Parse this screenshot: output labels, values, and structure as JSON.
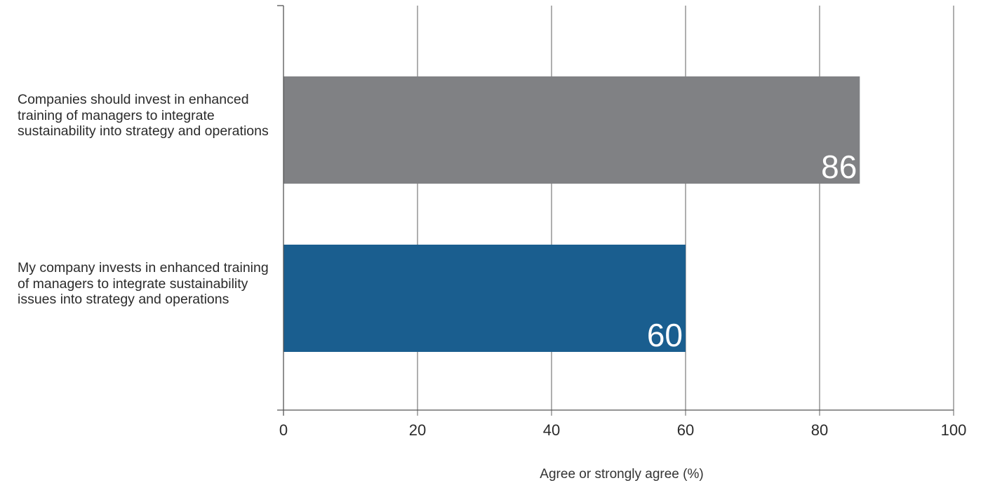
{
  "chart_data": {
    "type": "bar",
    "orientation": "horizontal",
    "title": "",
    "xlabel": "Agree or strongly agree (%)",
    "ylabel": "",
    "xlim": [
      0,
      100
    ],
    "xticks": [
      0,
      20,
      40,
      60,
      80,
      100
    ],
    "grid": "vertical",
    "categories": [
      "Companies should invest in enhanced training of managers to integrate sustainability into strategy and operations",
      "My company invests in enhanced training of managers to integrate sustainability issues into strategy and operations"
    ],
    "values": [
      86,
      60
    ],
    "data_labels": [
      "86",
      "60"
    ],
    "colors": [
      "#808184",
      "#1a5e8f"
    ]
  },
  "colors": {
    "gridline": "#7a7a7a",
    "axis": "#555555",
    "bar_label": "#ffffff"
  }
}
